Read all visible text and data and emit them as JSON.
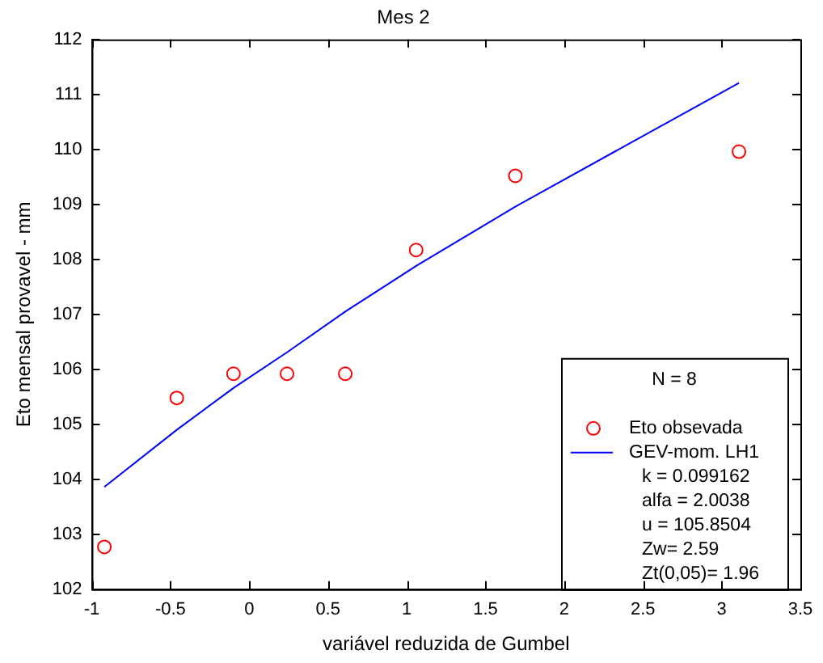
{
  "chart_data": {
    "type": "scatter",
    "title": "Mes 2",
    "xlabel": "variável reduzida de Gumbel",
    "ylabel": "Eto mensal provavel - mm",
    "xlim": [
      -1,
      3.5
    ],
    "xticks": [
      -1,
      -0.5,
      0,
      0.5,
      1,
      1.5,
      2,
      2.5,
      3,
      3.5
    ],
    "ylim": [
      102,
      112
    ],
    "yticks": [
      102,
      103,
      104,
      105,
      106,
      107,
      108,
      109,
      110,
      111,
      112
    ],
    "grid": false,
    "legend": "bottom right",
    "legend_title": "N = 8",
    "series": [
      {
        "name": "Eto obsevada",
        "marker": "circle",
        "color": "#ff0000",
        "x": [
          -0.92,
          -0.46,
          -0.1,
          0.24,
          0.61,
          1.06,
          1.69,
          3.11
        ],
        "values": [
          102.77,
          105.48,
          105.92,
          105.92,
          105.92,
          108.17,
          109.52,
          109.96
        ]
      },
      {
        "name": "GEV-mom. LH1",
        "type": "line",
        "marker": "none",
        "line_style": "solid",
        "color": "#0000ff",
        "x": [
          -0.92,
          -0.46,
          -0.1,
          0.24,
          0.61,
          1.06,
          1.69,
          3.11
        ],
        "values": [
          103.86,
          104.9,
          105.66,
          106.31,
          107.05,
          107.88,
          108.96,
          111.21
        ]
      }
    ],
    "annotations": [
      "k = 0.099162",
      "alfa = 2.0038",
      "u = 105.8504",
      "Zw= 2.59",
      "Zt(0,05)= 1.96"
    ]
  }
}
